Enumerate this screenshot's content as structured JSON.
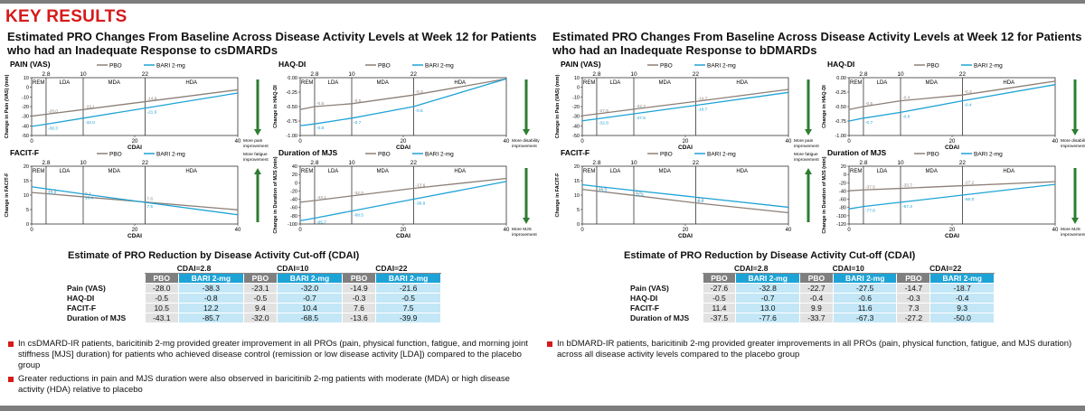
{
  "header": {
    "title": "KEY RESULTS"
  },
  "colors": {
    "pbo": "#8c7f77",
    "bari": "#1ea3d6",
    "accent": "#d61a1a",
    "arrow": "#2e7d32"
  },
  "panels": [
    {
      "title": "Estimated PRO Changes From Baseline Across Disease Activity Levels at Week 12 for Patients who had an Inadequate Response to csDMARDs",
      "table": {
        "title": "Estimate of PRO Reduction by Disease Activity Cut-off (CDAI)",
        "groups": [
          "CDAI=2.8",
          "CDAI=10",
          "CDAI=22"
        ],
        "col_pbo": "PBO",
        "col_bari": "BARI 2-mg",
        "rows": [
          {
            "label": "Pain (VAS)",
            "values": [
              "-28.0",
              "-38.3",
              "-23.1",
              "-32.0",
              "-14.9",
              "-21.6"
            ]
          },
          {
            "label": "HAQ-DI",
            "values": [
              "-0.5",
              "-0.8",
              "-0.5",
              "-0.7",
              "-0.3",
              "-0.5"
            ]
          },
          {
            "label": "FACIT-F",
            "values": [
              "10.5",
              "12.2",
              "9.4",
              "10.4",
              "7.6",
              "7.5"
            ]
          },
          {
            "label": "Duration of MJS",
            "values": [
              "-43.1",
              "-85.7",
              "-32.0",
              "-68.5",
              "-13.6",
              "-39.9"
            ]
          }
        ]
      },
      "bullets": [
        "In csDMARD-IR patients, baricitinib 2-mg provided greater improvement in all PROs (pain, physical function, fatigue, and morning joint stiffness [MJS] duration) for patients who achieved disease control (remission or low disease activity [LDA]) compared to the placebo group",
        "Greater reductions in pain and MJS duration were also observed in baricitinib 2-mg patients with moderate (MDA) or high disease activity (HDA) relative to placebo"
      ]
    },
    {
      "title": "Estimated PRO Changes From Baseline Across Disease Activity Levels at Week 12 for Patients who had an Inadequate Response to bDMARDs",
      "table": {
        "title": "Estimate of PRO Reduction by Disease Activity Cut-off (CDAI)",
        "groups": [
          "CDAI=2.8",
          "CDAI=10",
          "CDAI=22"
        ],
        "col_pbo": "PBO",
        "col_bari": "BARI 2-mg",
        "rows": [
          {
            "label": "Pain (VAS)",
            "values": [
              "-27.6",
              "-32.8",
              "-22.7",
              "-27.5",
              "-14.7",
              "-18.7"
            ]
          },
          {
            "label": "HAQ-DI",
            "values": [
              "-0.5",
              "-0.7",
              "-0.4",
              "-0.6",
              "-0.3",
              "-0.4"
            ]
          },
          {
            "label": "FACIT-F",
            "values": [
              "11.4",
              "13.0",
              "9.9",
              "11.6",
              "7.3",
              "9.3"
            ]
          },
          {
            "label": "Duration of MJS",
            "values": [
              "-37.5",
              "-77.6",
              "-33.7",
              "-67.3",
              "-27.2",
              "-50.0"
            ]
          }
        ]
      },
      "bullets": [
        "In bDMARD-IR patients, baricitinib 2-mg provided greater improvements in all PROs (pain, physical function, fatigue, and MJS duration) across all disease activity levels compared to the placebo group"
      ]
    }
  ],
  "chart_data": [
    {
      "panel": "csDMARD-IR",
      "type": "line",
      "title": "PAIN (VAS)",
      "ylabel": "Change in Pain (VAS) (mm)",
      "xlabel": "CDAI",
      "xlim": [
        0,
        40
      ],
      "ylim": [
        -50,
        10
      ],
      "yticks": [
        10,
        0,
        -10,
        -20,
        -30,
        -40,
        -50
      ],
      "xticks": [
        0,
        20,
        40
      ],
      "top_ticks": [
        "2.8",
        "10",
        "22"
      ],
      "regions": [
        "REM",
        "LDA",
        "MDA",
        "HDA"
      ],
      "cutoffs": [
        2.8,
        10,
        22
      ],
      "legend": {
        "pbo": "PBO",
        "bari": "BARI 2-mg"
      },
      "series": [
        {
          "name": "PBO",
          "x": [
            0,
            2.8,
            10,
            22,
            40
          ],
          "y": [
            -29.9,
            -28.0,
            -23.1,
            -14.9,
            -2.6
          ],
          "labels": [
            "-28.0",
            "-23.1",
            "-14.9"
          ]
        },
        {
          "name": "BARI 2-mg",
          "x": [
            0,
            2.8,
            10,
            22,
            40
          ],
          "y": [
            -40.5,
            -38.3,
            -32.0,
            -21.6,
            -5.9
          ],
          "labels": [
            "-38.3",
            "-32.0",
            "-21.6"
          ]
        }
      ],
      "arrow_note": "More pain improvement"
    },
    {
      "panel": "csDMARD-IR",
      "type": "line",
      "title": "HAQ-DI",
      "ylabel": "Change in HAQ-DI",
      "xlabel": "CDAI",
      "xlim": [
        0,
        40
      ],
      "ylim": [
        -1.0,
        0.0
      ],
      "yticks": [
        0.0,
        -0.25,
        -0.5,
        -0.75,
        -1.0
      ],
      "yticklabels": [
        "0.00",
        "-0.25",
        "-0.50",
        "-0.75",
        "-1.00"
      ],
      "xticks": [
        0,
        20,
        40
      ],
      "top_ticks": [
        "2.8",
        "10",
        "22"
      ],
      "regions": [
        "REM",
        "LDA",
        "MDA",
        "HDA"
      ],
      "cutoffs": [
        2.8,
        10,
        22
      ],
      "legend": {
        "pbo": "PBO",
        "bari": "BARI 2-mg"
      },
      "series": [
        {
          "name": "PBO",
          "x": [
            0,
            2.8,
            10,
            22,
            40
          ],
          "y": [
            -0.55,
            -0.5,
            -0.45,
            -0.3,
            -0.02
          ],
          "labels": [
            "-0.5",
            "-0.5",
            "-0.3"
          ]
        },
        {
          "name": "BARI 2-mg",
          "x": [
            0,
            2.8,
            10,
            22,
            40
          ],
          "y": [
            -0.83,
            -0.8,
            -0.7,
            -0.5,
            -0.02
          ],
          "labels": [
            "-0.8",
            "-0.7",
            "-0.5"
          ]
        }
      ],
      "arrow_note": "More disability improvement"
    },
    {
      "panel": "csDMARD-IR",
      "type": "line",
      "title": "FACIT-F",
      "ylabel": "Change in FACIT-F",
      "xlabel": "CDAI",
      "xlim": [
        0,
        40
      ],
      "ylim": [
        0,
        20
      ],
      "yticks": [
        20,
        15,
        10,
        5,
        0
      ],
      "xticks": [
        0,
        20,
        40
      ],
      "top_ticks": [
        "2.8",
        "10",
        "22"
      ],
      "regions": [
        "REM",
        "LDA",
        "MDA",
        "HDA"
      ],
      "cutoffs": [
        2.8,
        10,
        22
      ],
      "legend": {
        "pbo": "PBO",
        "bari": "BARI 2-mg"
      },
      "series": [
        {
          "name": "PBO",
          "x": [
            0,
            2.8,
            10,
            22,
            40
          ],
          "y": [
            10.9,
            10.5,
            9.4,
            7.6,
            4.9
          ],
          "labels": [
            "10.5",
            "9.4",
            "7.6"
          ]
        },
        {
          "name": "BARI 2-mg",
          "x": [
            0,
            2.8,
            10,
            22,
            40
          ],
          "y": [
            12.9,
            12.2,
            10.4,
            7.5,
            3.2
          ],
          "labels": [
            "12.2",
            "10.4",
            "7.5"
          ]
        }
      ],
      "arrow_note": "More fatigue improvement"
    },
    {
      "panel": "csDMARD-IR",
      "type": "line",
      "title": "Duration of MJS",
      "ylabel": "Change in Duration of MJS (min)",
      "xlabel": "CDAI",
      "xlim": [
        0,
        40
      ],
      "ylim": [
        -100,
        40
      ],
      "yticks": [
        40,
        20,
        0,
        -20,
        -40,
        -60,
        -80,
        -100
      ],
      "xticks": [
        0,
        20,
        40
      ],
      "top_ticks": [
        "2.8",
        "10",
        "22"
      ],
      "regions": [
        "REM",
        "LDA",
        "MDA",
        "HDA"
      ],
      "cutoffs": [
        2.8,
        10,
        22
      ],
      "legend": {
        "pbo": "PBO",
        "bari": "BARI 2-mg"
      },
      "series": [
        {
          "name": "PBO",
          "x": [
            0,
            2.8,
            10,
            22,
            40
          ],
          "y": [
            -47.2,
            -43.1,
            -32.0,
            -13.6,
            10.5
          ],
          "labels": [
            "-43.1",
            "-32.0",
            "-13.6"
          ]
        },
        {
          "name": "BARI 2-mg",
          "x": [
            0,
            2.8,
            10,
            22,
            40
          ],
          "y": [
            -92.0,
            -85.7,
            -68.5,
            -39.9,
            3.0
          ],
          "labels": [
            "-85.7",
            "-68.5",
            "-39.9"
          ]
        }
      ],
      "arrow_note": "More MJS improvement"
    },
    {
      "panel": "bDMARD-IR",
      "type": "line",
      "title": "PAIN (VAS)",
      "ylabel": "Change in Pain (VAS) (mm)",
      "xlabel": "CDAI",
      "xlim": [
        0,
        40
      ],
      "ylim": [
        -50,
        10
      ],
      "yticks": [
        10,
        0,
        -10,
        -20,
        -30,
        -40,
        -50
      ],
      "xticks": [
        0,
        20,
        40
      ],
      "top_ticks": [
        "2.8",
        "10",
        "22"
      ],
      "regions": [
        "REM",
        "LDA",
        "MDA",
        "HDA"
      ],
      "cutoffs": [
        2.8,
        10,
        22
      ],
      "legend": {
        "pbo": "PBO",
        "bari": "BARI 2-mg"
      },
      "series": [
        {
          "name": "PBO",
          "x": [
            0,
            2.8,
            10,
            22,
            40
          ],
          "y": [
            -29.5,
            -27.6,
            -22.7,
            -14.7,
            -2.2
          ],
          "labels": [
            "-27.6",
            "-22.7",
            "-14.7"
          ]
        },
        {
          "name": "BARI 2-mg",
          "x": [
            0,
            2.8,
            10,
            22,
            40
          ],
          "y": [
            -34.8,
            -32.8,
            -27.5,
            -18.7,
            -5.3
          ],
          "labels": [
            "-32.8",
            "-27.5",
            "-18.7"
          ]
        }
      ],
      "arrow_note": "More pain improvement"
    },
    {
      "panel": "bDMARD-IR",
      "type": "line",
      "title": "HAQ-DI",
      "ylabel": "Change in HAQ-DI",
      "xlabel": "CDAI",
      "xlim": [
        0,
        40
      ],
      "ylim": [
        -1.0,
        0.0
      ],
      "yticks": [
        0.0,
        -0.25,
        -0.5,
        -0.75,
        -1.0
      ],
      "yticklabels": [
        "0.00",
        "-0.25",
        "-0.50",
        "-0.75",
        "-1.00"
      ],
      "xticks": [
        0,
        20,
        40
      ],
      "top_ticks": [
        "2.8",
        "10",
        "22"
      ],
      "regions": [
        "REM",
        "LDA",
        "MDA",
        "HDA"
      ],
      "cutoffs": [
        2.8,
        10,
        22
      ],
      "legend": {
        "pbo": "PBO",
        "bari": "BARI 2-mg"
      },
      "series": [
        {
          "name": "PBO",
          "x": [
            0,
            2.8,
            10,
            22,
            40
          ],
          "y": [
            -0.55,
            -0.5,
            -0.4,
            -0.3,
            -0.06
          ],
          "labels": [
            "-0.5",
            "-0.4",
            "-0.3"
          ]
        },
        {
          "name": "BARI 2-mg",
          "x": [
            0,
            2.8,
            10,
            22,
            40
          ],
          "y": [
            -0.75,
            -0.7,
            -0.6,
            -0.4,
            -0.12
          ],
          "labels": [
            "-0.7",
            "-0.6",
            "-0.4"
          ]
        }
      ],
      "arrow_note": "More disability improvement"
    },
    {
      "panel": "bDMARD-IR",
      "type": "line",
      "title": "FACIT-F",
      "ylabel": "Change in FACIT-F",
      "xlabel": "CDAI",
      "xlim": [
        0,
        40
      ],
      "ylim": [
        0,
        20
      ],
      "yticks": [
        20,
        15,
        10,
        5,
        0
      ],
      "xticks": [
        0,
        20,
        40
      ],
      "top_ticks": [
        "2.8",
        "10",
        "22"
      ],
      "regions": [
        "REM",
        "LDA",
        "MDA",
        "HDA"
      ],
      "cutoffs": [
        2.8,
        10,
        22
      ],
      "legend": {
        "pbo": "PBO",
        "bari": "BARI 2-mg"
      },
      "series": [
        {
          "name": "PBO",
          "x": [
            0,
            2.8,
            10,
            22,
            40
          ],
          "y": [
            12.0,
            11.4,
            9.9,
            7.3,
            3.9
          ],
          "labels": [
            "11.4",
            "9.9",
            "7.3"
          ]
        },
        {
          "name": "BARI 2-mg",
          "x": [
            0,
            2.8,
            10,
            22,
            40
          ],
          "y": [
            13.6,
            13.0,
            11.6,
            9.3,
            5.8
          ],
          "labels": [
            "13.0",
            "11.6",
            "9.3"
          ]
        }
      ],
      "arrow_note": "More fatigue improvement"
    },
    {
      "panel": "bDMARD-IR",
      "type": "line",
      "title": "Duration of MJS",
      "ylabel": "Change in Duration of MJS (min)",
      "xlabel": "CDAI",
      "xlim": [
        0,
        40
      ],
      "ylim": [
        -120,
        20
      ],
      "yticks": [
        20,
        0,
        -20,
        -40,
        -60,
        -80,
        -100,
        -120
      ],
      "xticks": [
        0,
        20,
        40
      ],
      "top_ticks": [
        "2.8",
        "10",
        "22"
      ],
      "regions": [
        "REM",
        "LDA",
        "MDA",
        "HDA"
      ],
      "cutoffs": [
        2.8,
        10,
        22
      ],
      "legend": {
        "pbo": "PBO",
        "bari": "BARI 2-mg"
      },
      "series": [
        {
          "name": "PBO",
          "x": [
            0,
            2.8,
            10,
            22,
            40
          ],
          "y": [
            -39.5,
            -37.5,
            -33.7,
            -27.2,
            -17.5
          ],
          "labels": [
            "-37.5",
            "-33.7",
            "-27.2"
          ]
        },
        {
          "name": "BARI 2-mg",
          "x": [
            0,
            2.8,
            10,
            22,
            40
          ],
          "y": [
            -83.5,
            -77.6,
            -67.3,
            -50.0,
            -24.0
          ],
          "labels": [
            "-77.6",
            "-67.3",
            "-50.0"
          ]
        }
      ],
      "arrow_note": "More MJS improvement"
    }
  ]
}
